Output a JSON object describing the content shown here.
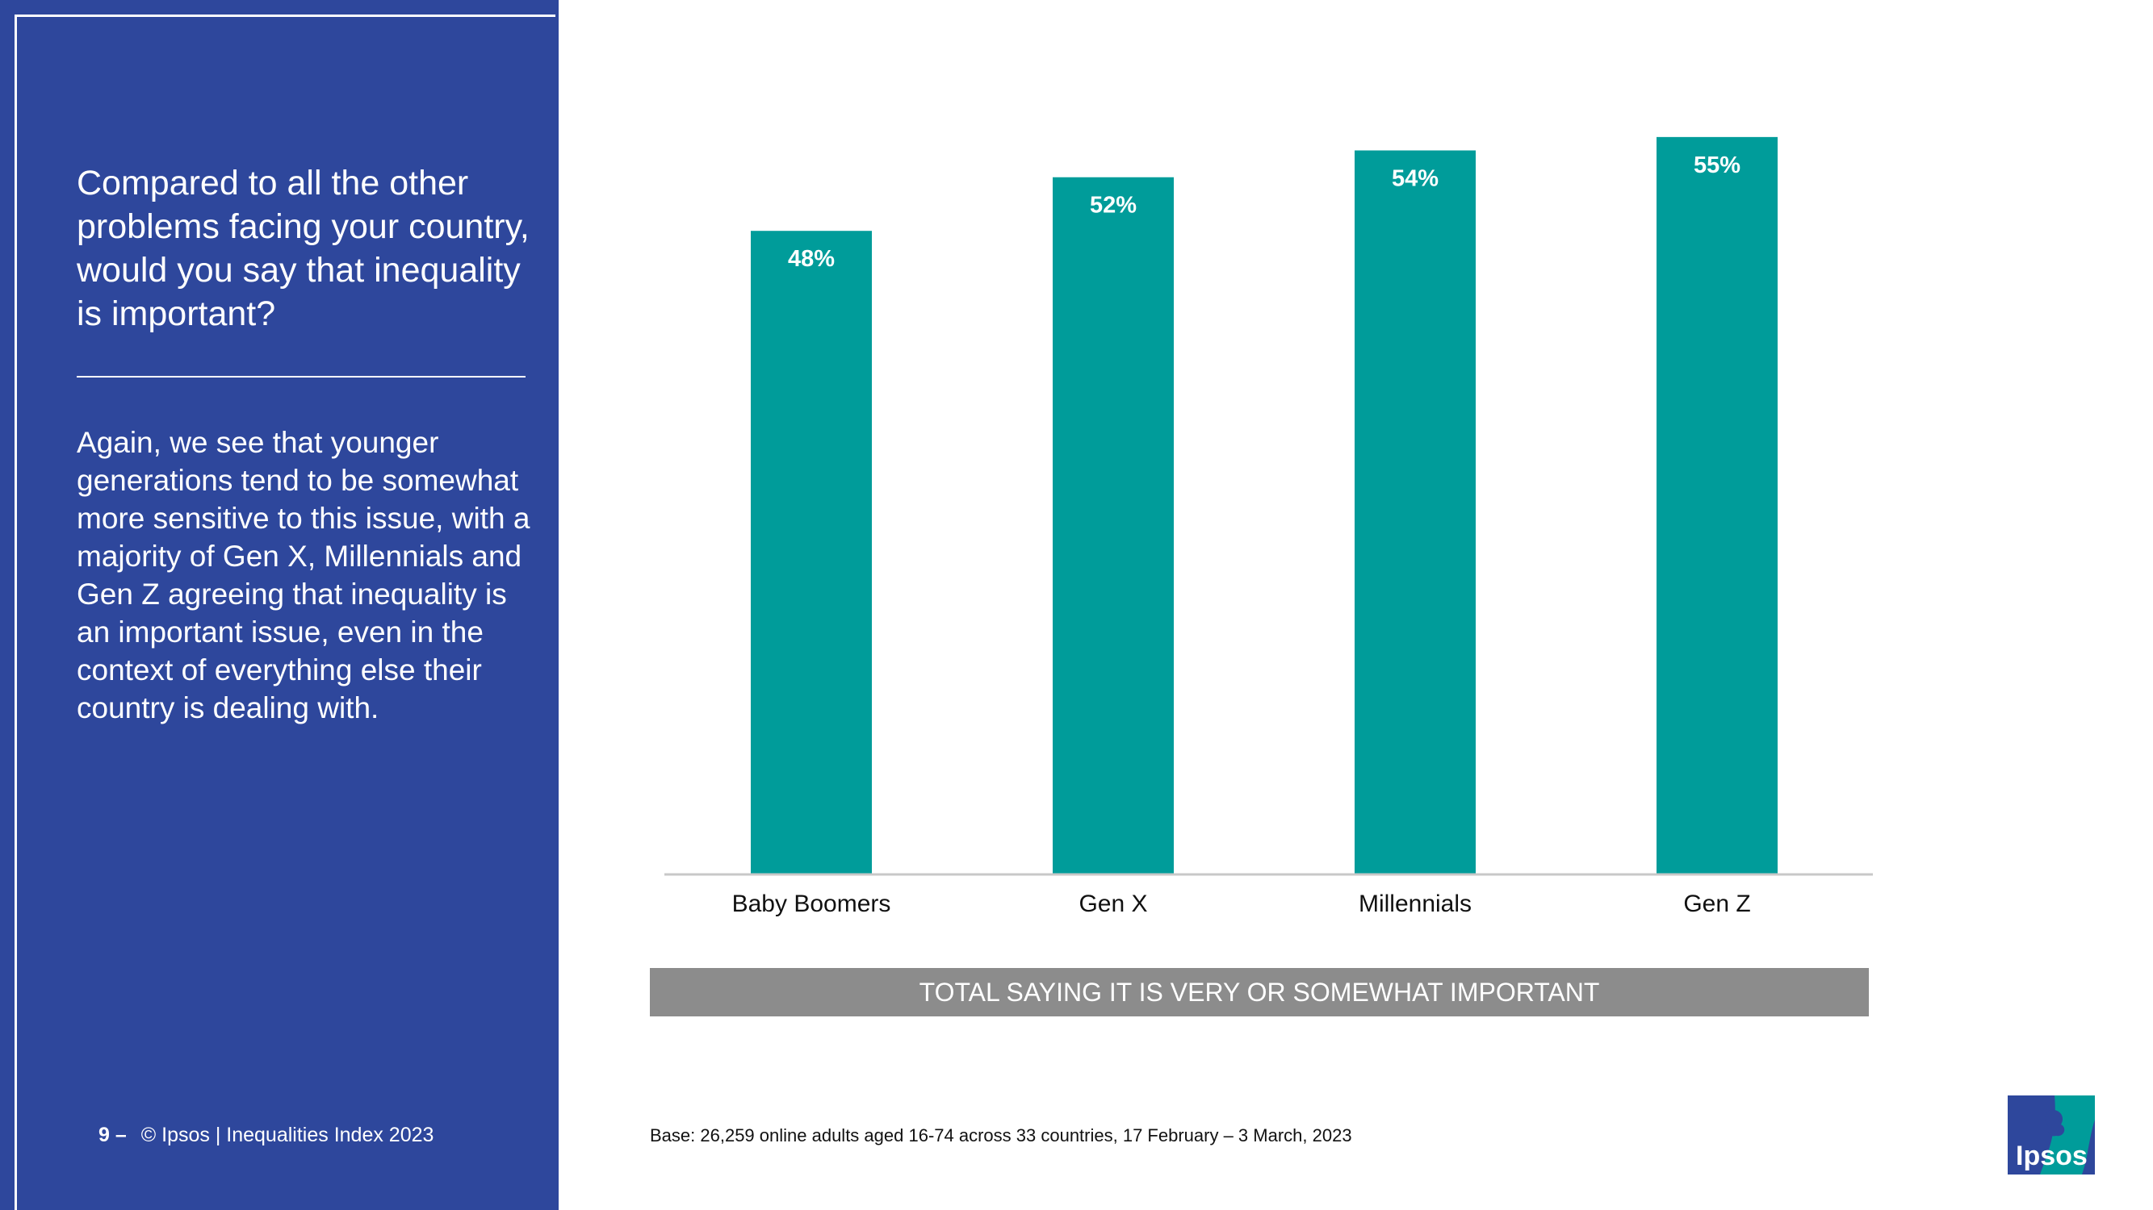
{
  "sidebar": {
    "question": "Compared to all the other problems facing your country, would you say that inequality is important?",
    "insight": "Again, we see that younger generations tend to be somewhat more sensitive to this issue, with a majority of Gen X, Millennials and Gen Z agreeing that inequality is an important issue, even in the context of everything else their country is dealing with.",
    "page_number": "9 –",
    "footer_text": "© Ipsos | Inequalities Index 2023"
  },
  "chart_data": {
    "type": "bar",
    "categories": [
      "Baby Boomers",
      "Gen X",
      "Millennials",
      "Gen Z"
    ],
    "values": [
      48,
      52,
      54,
      55
    ],
    "value_labels": [
      "48%",
      "52%",
      "54%",
      "55%"
    ],
    "ylim": [
      0,
      58
    ],
    "grid": false,
    "bar_color": "#009c9a",
    "axis_color": "#c8c8c8"
  },
  "caption": "TOTAL SAYING IT IS VERY OR SOMEWHAT IMPORTANT",
  "base_note": "Base: 26,259 online adults aged 16-74 across 33 countries, 17 February – 3 March, 2023",
  "logo": {
    "text": "Ipsos",
    "primary_color": "#2e479c",
    "accent_color": "#009c9a"
  },
  "colors": {
    "panel": "#2e479c",
    "caption_bar": "#8c8c8c"
  }
}
